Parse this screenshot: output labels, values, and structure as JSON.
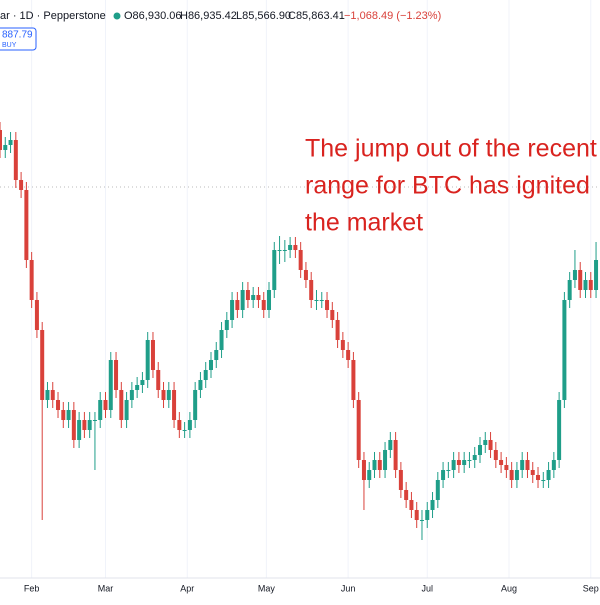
{
  "header": {
    "symbol": "ar · 1D · Pepperstone",
    "open": "O86,930.06",
    "high": "H86,935.42",
    "low": "L85,566.90",
    "close": "C85,863.41",
    "change": "−1,068.49 (−1.23%)",
    "price_badge": "887.79",
    "buy": "BUY"
  },
  "chart_data": {
    "type": "candlestick",
    "annotation": [
      "The jump out of the recent",
      "range for BTC has ignited",
      "the market"
    ],
    "x": [
      20,
      22,
      24,
      26,
      28,
      30,
      32,
      34,
      36,
      38,
      40,
      42,
      44,
      46,
      48,
      50,
      52,
      54,
      56,
      58,
      60,
      62,
      64,
      66,
      68,
      70,
      72,
      74,
      76,
      78,
      80,
      82,
      84,
      86,
      88,
      90,
      92,
      94,
      96,
      98,
      100,
      102,
      104,
      106,
      108,
      110,
      112,
      114,
      116,
      118,
      120,
      122,
      124,
      126,
      128,
      130,
      132,
      134,
      136,
      138,
      140,
      142,
      144,
      146,
      148,
      150,
      152,
      154,
      156,
      158,
      160,
      162,
      164,
      166,
      168,
      170,
      172,
      174,
      176,
      178,
      180,
      182,
      184,
      186,
      188,
      190,
      192,
      194,
      196,
      198,
      200,
      202,
      204,
      206,
      208,
      210,
      212,
      214,
      216,
      218,
      220,
      222,
      224,
      226,
      228,
      230,
      232,
      234,
      236,
      238,
      240,
      242,
      244,
      246
    ],
    "open": [
      93500,
      92500,
      92750,
      93000,
      91000,
      90500,
      87000,
      85000,
      83500,
      80000,
      80500,
      80000,
      79500,
      79000,
      79500,
      78000,
      79000,
      78500,
      79000,
      79000,
      80000,
      79500,
      82000,
      80500,
      79000,
      80000,
      80500,
      80750,
      81000,
      83000,
      81500,
      80500,
      80000,
      80500,
      79000,
      78500,
      78500,
      79000,
      80500,
      81000,
      81500,
      82000,
      82500,
      83500,
      84000,
      85000,
      84500,
      85500,
      85000,
      85250,
      85000,
      84500,
      85500,
      87500,
      87500,
      87500,
      87750,
      87500,
      86500,
      86000,
      85000,
      85000,
      85000,
      84500,
      84000,
      83000,
      82500,
      82000,
      80000,
      77000,
      76000,
      76500,
      77000,
      76500,
      77500,
      78000,
      76500,
      75500,
      75000,
      74500,
      74000,
      74000,
      74500,
      75000,
      76000,
      76500,
      76500,
      77000,
      76750,
      77000,
      77000,
      77250,
      77750,
      78000,
      77500,
      77000,
      76750,
      76500,
      76000,
      76500,
      77000,
      76500,
      76250,
      76000,
      76000,
      76500,
      77000,
      80000,
      85000,
      86000,
      86500,
      85500,
      86000,
      85500
    ],
    "high": [
      93900,
      93150,
      93400,
      93400,
      91400,
      90900,
      87400,
      85400,
      83900,
      80900,
      80900,
      80400,
      79900,
      79900,
      79900,
      79400,
      79400,
      79400,
      79400,
      80400,
      80400,
      82400,
      82400,
      80900,
      80400,
      80900,
      81150,
      81400,
      83400,
      83400,
      81900,
      80900,
      80900,
      80900,
      79400,
      78900,
      79400,
      80900,
      81400,
      81900,
      82400,
      82900,
      83900,
      84400,
      85400,
      85400,
      85900,
      85900,
      85650,
      85650,
      85400,
      85900,
      87900,
      88200,
      88000,
      88150,
      88150,
      87900,
      86900,
      86400,
      85500,
      85400,
      85400,
      84900,
      84400,
      83400,
      82900,
      82400,
      80400,
      77400,
      76900,
      77400,
      77400,
      77900,
      78400,
      78400,
      76900,
      75900,
      75400,
      74900,
      74500,
      74900,
      75400,
      76400,
      76900,
      76900,
      77400,
      77400,
      77400,
      77400,
      77650,
      78150,
      78400,
      78400,
      77900,
      77400,
      77150,
      76900,
      76900,
      77400,
      77400,
      76900,
      76650,
      76400,
      76900,
      77400,
      80400,
      85400,
      86400,
      87500,
      86900,
      86400,
      86400,
      87900
    ],
    "low": [
      92100,
      92100,
      92350,
      90600,
      90100,
      86600,
      84600,
      83100,
      74000,
      79600,
      79600,
      79100,
      78600,
      78600,
      77600,
      77600,
      78100,
      78100,
      76500,
      78600,
      79100,
      79100,
      80100,
      78600,
      78600,
      79600,
      80100,
      80350,
      80600,
      81100,
      80100,
      79600,
      79600,
      78600,
      78100,
      78100,
      78100,
      78600,
      80100,
      80600,
      81100,
      81600,
      82100,
      83100,
      83600,
      84100,
      84100,
      84600,
      84600,
      84600,
      84100,
      84100,
      85100,
      86800,
      86900,
      87100,
      87100,
      86100,
      85600,
      84600,
      84500,
      84600,
      84100,
      83600,
      82600,
      82100,
      81600,
      79600,
      76600,
      74500,
      75600,
      76100,
      76100,
      76100,
      77100,
      76100,
      75100,
      74600,
      74100,
      73600,
      73000,
      73600,
      74100,
      74600,
      75600,
      76100,
      76100,
      76350,
      76350,
      76600,
      76600,
      76850,
      77350,
      77100,
      76600,
      76350,
      76100,
      75600,
      75600,
      76100,
      76100,
      75850,
      75600,
      75600,
      75600,
      76100,
      76600,
      79600,
      84600,
      85600,
      85100,
      85100,
      85100,
      85100
    ],
    "close": [
      92500,
      92750,
      93000,
      91000,
      90500,
      87000,
      85000,
      83500,
      80000,
      80500,
      80000,
      79500,
      79000,
      79500,
      78000,
      79000,
      78500,
      79000,
      79000,
      80000,
      79500,
      82000,
      80500,
      79000,
      80000,
      80500,
      80750,
      81000,
      83000,
      81500,
      80500,
      80000,
      80500,
      79000,
      78500,
      78500,
      79000,
      80500,
      81000,
      81500,
      82000,
      82500,
      83500,
      84000,
      85000,
      84500,
      85500,
      85000,
      85250,
      85000,
      84500,
      85500,
      87500,
      87500,
      87500,
      87750,
      87500,
      86500,
      86000,
      85000,
      85000,
      85000,
      84500,
      84000,
      83000,
      82500,
      82000,
      80000,
      77000,
      76000,
      76500,
      77000,
      76500,
      77500,
      78000,
      76500,
      75500,
      75000,
      74500,
      74000,
      74000,
      74500,
      75000,
      76000,
      76500,
      76500,
      77000,
      76750,
      77000,
      77000,
      77250,
      77750,
      78000,
      77500,
      77000,
      76750,
      76500,
      76000,
      76500,
      77000,
      76500,
      76250,
      76000,
      76000,
      76500,
      77000,
      80000,
      85000,
      86000,
      86500,
      85500,
      86000,
      85500,
      87000
    ],
    "up_color": "#1f9e89",
    "down_color": "#d9413a",
    "xlim": [
      20,
      247.5
    ],
    "ylim": [
      70000,
      100000
    ],
    "xticks": [
      {
        "value": 32,
        "label": "Feb"
      },
      {
        "value": 60,
        "label": "Mar"
      },
      {
        "value": 91,
        "label": "Apr"
      },
      {
        "value": 121,
        "label": "May"
      },
      {
        "value": 152,
        "label": "Jun"
      },
      {
        "value": 182,
        "label": "Jul"
      },
      {
        "value": 213,
        "label": "Aug"
      },
      {
        "value": 244,
        "label": "Sep"
      }
    ],
    "grid": true
  }
}
